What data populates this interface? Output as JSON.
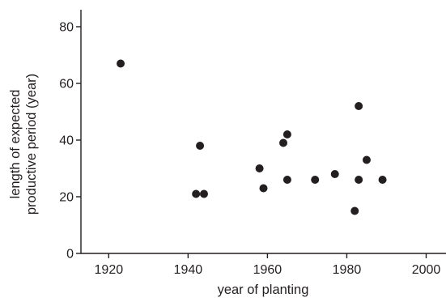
{
  "chart_data": {
    "type": "scatter",
    "title": "",
    "xlabel": "year of planting",
    "ylabel_lines": [
      "length of expected",
      "productive period (year)"
    ],
    "xlim": [
      1913,
      2005
    ],
    "ylim": [
      0,
      86
    ],
    "x_ticks": [
      1920,
      1940,
      1960,
      1980,
      2000
    ],
    "y_ticks": [
      0,
      20,
      40,
      60,
      80
    ],
    "grid": false,
    "legend": "none",
    "marker_color": "#231f20",
    "points": [
      {
        "x": 1923,
        "y": 67
      },
      {
        "x": 1942,
        "y": 21
      },
      {
        "x": 1943,
        "y": 38
      },
      {
        "x": 1944,
        "y": 21
      },
      {
        "x": 1958,
        "y": 30
      },
      {
        "x": 1959,
        "y": 23
      },
      {
        "x": 1964,
        "y": 39
      },
      {
        "x": 1965,
        "y": 42
      },
      {
        "x": 1965,
        "y": 26
      },
      {
        "x": 1972,
        "y": 26
      },
      {
        "x": 1977,
        "y": 28
      },
      {
        "x": 1982,
        "y": 15
      },
      {
        "x": 1983,
        "y": 52
      },
      {
        "x": 1983,
        "y": 26
      },
      {
        "x": 1985,
        "y": 33
      },
      {
        "x": 1989,
        "y": 26
      }
    ]
  }
}
